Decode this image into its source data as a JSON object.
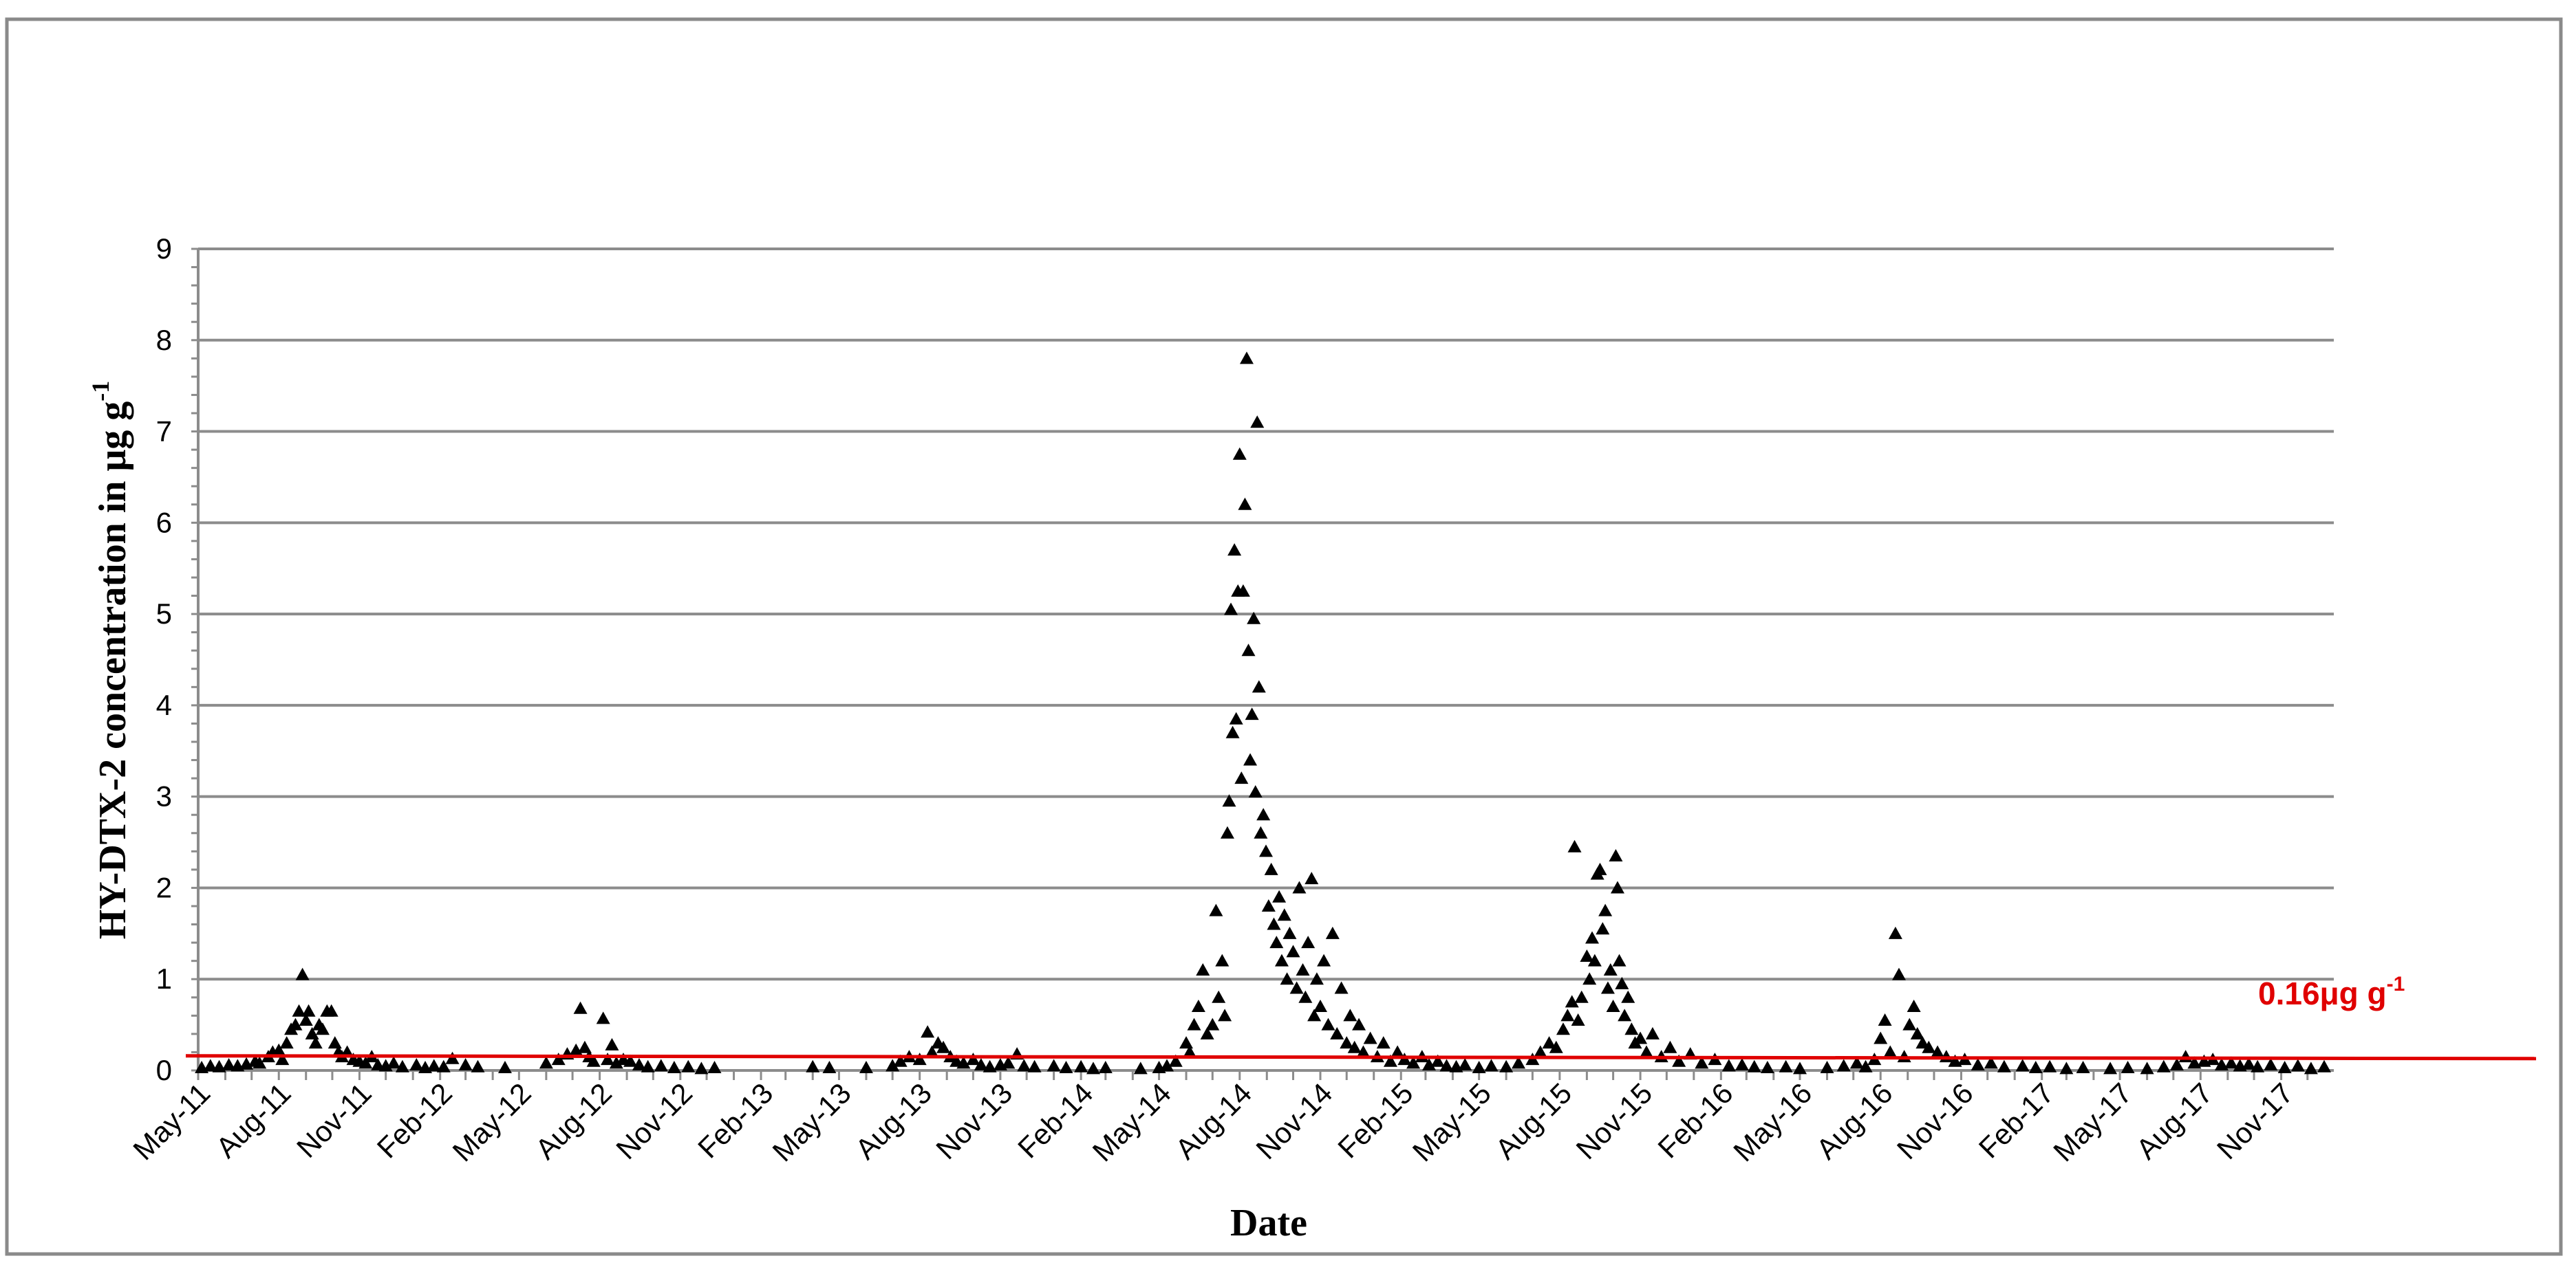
{
  "chart_data": {
    "type": "scatter",
    "title": "",
    "xlabel": "Date",
    "ylabel": "HY-DTX-2 concentration in μg g",
    "ylabel_superscript": "-1",
    "ylim": [
      0,
      9
    ],
    "yticks": [
      "0",
      "1",
      "2",
      "3",
      "4",
      "5",
      "6",
      "7",
      "8",
      "9"
    ],
    "xlim": [
      "2011-05-01",
      "2017-12-31"
    ],
    "xticks": [
      "May-11",
      "Aug-11",
      "Nov-11",
      "Feb-12",
      "May-12",
      "Aug-12",
      "Nov-12",
      "Feb-13",
      "May-13",
      "Aug-13",
      "Nov-13",
      "Feb-14",
      "May-14",
      "Aug-14",
      "Nov-14",
      "Feb-15",
      "May-15",
      "Aug-15",
      "Nov-15",
      "Feb-16",
      "May-16",
      "Aug-16",
      "Nov-16",
      "Feb-17",
      "May-17",
      "Aug-17",
      "Nov-17"
    ],
    "grid": "horizontal",
    "marker": "triangle",
    "marker_color": "#000000",
    "threshold": {
      "value": 0.16,
      "label": "0.16μg g",
      "label_superscript": "-1",
      "color": "#e00000"
    },
    "points": [
      [
        "2011-05-05",
        0.03
      ],
      [
        "2011-05-15",
        0.05
      ],
      [
        "2011-05-25",
        0.04
      ],
      [
        "2011-06-05",
        0.06
      ],
      [
        "2011-06-15",
        0.05
      ],
      [
        "2011-06-25",
        0.07
      ],
      [
        "2011-07-05",
        0.1
      ],
      [
        "2011-07-10",
        0.08
      ],
      [
        "2011-07-20",
        0.15
      ],
      [
        "2011-07-25",
        0.2
      ],
      [
        "2011-08-01",
        0.22
      ],
      [
        "2011-08-05",
        0.12
      ],
      [
        "2011-08-10",
        0.3
      ],
      [
        "2011-08-15",
        0.45
      ],
      [
        "2011-08-20",
        0.5
      ],
      [
        "2011-08-24",
        0.65
      ],
      [
        "2011-08-28",
        1.05
      ],
      [
        "2011-09-01",
        0.55
      ],
      [
        "2011-09-04",
        0.65
      ],
      [
        "2011-09-08",
        0.4
      ],
      [
        "2011-09-12",
        0.3
      ],
      [
        "2011-09-16",
        0.5
      ],
      [
        "2011-09-20",
        0.45
      ],
      [
        "2011-09-25",
        0.65
      ],
      [
        "2011-09-30",
        0.65
      ],
      [
        "2011-10-04",
        0.3
      ],
      [
        "2011-10-08",
        0.2
      ],
      [
        "2011-10-12",
        0.15
      ],
      [
        "2011-10-18",
        0.2
      ],
      [
        "2011-10-25",
        0.12
      ],
      [
        "2011-11-01",
        0.1
      ],
      [
        "2011-11-08",
        0.08
      ],
      [
        "2011-11-15",
        0.15
      ],
      [
        "2011-11-22",
        0.06
      ],
      [
        "2011-12-01",
        0.05
      ],
      [
        "2011-12-10",
        0.08
      ],
      [
        "2011-12-20",
        0.04
      ],
      [
        "2012-01-05",
        0.06
      ],
      [
        "2012-01-15",
        0.03
      ],
      [
        "2012-01-25",
        0.05
      ],
      [
        "2012-02-05",
        0.04
      ],
      [
        "2012-02-15",
        0.13
      ],
      [
        "2012-03-01",
        0.06
      ],
      [
        "2012-03-15",
        0.04
      ],
      [
        "2012-04-15",
        0.03
      ],
      [
        "2012-06-01",
        0.08
      ],
      [
        "2012-06-15",
        0.12
      ],
      [
        "2012-06-25",
        0.18
      ],
      [
        "2012-07-05",
        0.22
      ],
      [
        "2012-07-10",
        0.68
      ],
      [
        "2012-07-15",
        0.25
      ],
      [
        "2012-07-20",
        0.15
      ],
      [
        "2012-07-25",
        0.1
      ],
      [
        "2012-08-05",
        0.57
      ],
      [
        "2012-08-10",
        0.12
      ],
      [
        "2012-08-15",
        0.28
      ],
      [
        "2012-08-20",
        0.08
      ],
      [
        "2012-08-28",
        0.12
      ],
      [
        "2012-09-05",
        0.1
      ],
      [
        "2012-09-15",
        0.06
      ],
      [
        "2012-09-25",
        0.04
      ],
      [
        "2012-10-10",
        0.05
      ],
      [
        "2012-10-25",
        0.03
      ],
      [
        "2012-11-10",
        0.04
      ],
      [
        "2012-11-25",
        0.02
      ],
      [
        "2012-12-10",
        0.03
      ],
      [
        "2013-04-01",
        0.04
      ],
      [
        "2013-04-20",
        0.03
      ],
      [
        "2013-06-01",
        0.03
      ],
      [
        "2013-07-01",
        0.05
      ],
      [
        "2013-07-10",
        0.1
      ],
      [
        "2013-07-20",
        0.15
      ],
      [
        "2013-08-01",
        0.12
      ],
      [
        "2013-08-10",
        0.42
      ],
      [
        "2013-08-15",
        0.2
      ],
      [
        "2013-08-22",
        0.3
      ],
      [
        "2013-08-28",
        0.25
      ],
      [
        "2013-09-05",
        0.15
      ],
      [
        "2013-09-12",
        0.1
      ],
      [
        "2013-09-20",
        0.08
      ],
      [
        "2013-10-01",
        0.12
      ],
      [
        "2013-10-10",
        0.06
      ],
      [
        "2013-10-20",
        0.04
      ],
      [
        "2013-11-01",
        0.06
      ],
      [
        "2013-11-10",
        0.08
      ],
      [
        "2013-11-20",
        0.18
      ],
      [
        "2013-11-28",
        0.05
      ],
      [
        "2013-12-10",
        0.04
      ],
      [
        "2014-01-01",
        0.05
      ],
      [
        "2014-01-15",
        0.03
      ],
      [
        "2014-02-01",
        0.04
      ],
      [
        "2014-02-15",
        0.02
      ],
      [
        "2014-03-01",
        0.03
      ],
      [
        "2014-04-10",
        0.02
      ],
      [
        "2014-05-01",
        0.03
      ],
      [
        "2014-05-10",
        0.05
      ],
      [
        "2014-05-20",
        0.1
      ],
      [
        "2014-06-01",
        0.3
      ],
      [
        "2014-06-05",
        0.2
      ],
      [
        "2014-06-10",
        0.5
      ],
      [
        "2014-06-15",
        0.7
      ],
      [
        "2014-06-20",
        1.1
      ],
      [
        "2014-06-25",
        0.4
      ],
      [
        "2014-07-01",
        0.5
      ],
      [
        "2014-07-05",
        1.75
      ],
      [
        "2014-07-08",
        0.8
      ],
      [
        "2014-07-12",
        1.2
      ],
      [
        "2014-07-15",
        0.6
      ],
      [
        "2014-07-18",
        2.6
      ],
      [
        "2014-07-20",
        2.95
      ],
      [
        "2014-07-22",
        5.05
      ],
      [
        "2014-07-24",
        3.7
      ],
      [
        "2014-07-26",
        5.7
      ],
      [
        "2014-07-28",
        3.85
      ],
      [
        "2014-07-30",
        5.25
      ],
      [
        "2014-08-01",
        6.75
      ],
      [
        "2014-08-03",
        3.2
      ],
      [
        "2014-08-05",
        5.25
      ],
      [
        "2014-08-07",
        6.2
      ],
      [
        "2014-08-09",
        7.8
      ],
      [
        "2014-08-11",
        4.6
      ],
      [
        "2014-08-13",
        3.4
      ],
      [
        "2014-08-15",
        3.9
      ],
      [
        "2014-08-17",
        4.95
      ],
      [
        "2014-08-19",
        3.05
      ],
      [
        "2014-08-21",
        7.1
      ],
      [
        "2014-08-23",
        4.2
      ],
      [
        "2014-08-25",
        2.6
      ],
      [
        "2014-08-28",
        2.8
      ],
      [
        "2014-08-31",
        2.4
      ],
      [
        "2014-09-03",
        1.8
      ],
      [
        "2014-09-06",
        2.2
      ],
      [
        "2014-09-09",
        1.6
      ],
      [
        "2014-09-12",
        1.4
      ],
      [
        "2014-09-15",
        1.9
      ],
      [
        "2014-09-18",
        1.2
      ],
      [
        "2014-09-21",
        1.7
      ],
      [
        "2014-09-24",
        1.0
      ],
      [
        "2014-09-27",
        1.5
      ],
      [
        "2014-10-01",
        1.3
      ],
      [
        "2014-10-05",
        0.9
      ],
      [
        "2014-10-08",
        2.0
      ],
      [
        "2014-10-12",
        1.1
      ],
      [
        "2014-10-15",
        0.8
      ],
      [
        "2014-10-18",
        1.4
      ],
      [
        "2014-10-22",
        2.1
      ],
      [
        "2014-10-25",
        0.6
      ],
      [
        "2014-10-28",
        1.0
      ],
      [
        "2014-11-01",
        0.7
      ],
      [
        "2014-11-05",
        1.2
      ],
      [
        "2014-11-10",
        0.5
      ],
      [
        "2014-11-15",
        1.5
      ],
      [
        "2014-11-20",
        0.4
      ],
      [
        "2014-11-25",
        0.9
      ],
      [
        "2014-12-01",
        0.3
      ],
      [
        "2014-12-05",
        0.6
      ],
      [
        "2014-12-10",
        0.25
      ],
      [
        "2014-12-15",
        0.5
      ],
      [
        "2014-12-20",
        0.2
      ],
      [
        "2014-12-28",
        0.35
      ],
      [
        "2015-01-05",
        0.15
      ],
      [
        "2015-01-12",
        0.3
      ],
      [
        "2015-01-20",
        0.1
      ],
      [
        "2015-01-28",
        0.2
      ],
      [
        "2015-02-05",
        0.12
      ],
      [
        "2015-02-15",
        0.08
      ],
      [
        "2015-02-25",
        0.15
      ],
      [
        "2015-03-05",
        0.06
      ],
      [
        "2015-03-15",
        0.1
      ],
      [
        "2015-03-25",
        0.05
      ],
      [
        "2015-04-05",
        0.04
      ],
      [
        "2015-04-15",
        0.06
      ],
      [
        "2015-05-01",
        0.03
      ],
      [
        "2015-05-15",
        0.05
      ],
      [
        "2015-06-01",
        0.04
      ],
      [
        "2015-06-15",
        0.08
      ],
      [
        "2015-07-01",
        0.12
      ],
      [
        "2015-07-10",
        0.2
      ],
      [
        "2015-07-20",
        0.3
      ],
      [
        "2015-07-28",
        0.25
      ],
      [
        "2015-08-05",
        0.45
      ],
      [
        "2015-08-10",
        0.6
      ],
      [
        "2015-08-15",
        0.75
      ],
      [
        "2015-08-18",
        2.45
      ],
      [
        "2015-08-22",
        0.55
      ],
      [
        "2015-08-26",
        0.8
      ],
      [
        "2015-09-01",
        1.25
      ],
      [
        "2015-09-04",
        1.0
      ],
      [
        "2015-09-07",
        1.45
      ],
      [
        "2015-09-10",
        1.2
      ],
      [
        "2015-09-13",
        2.15
      ],
      [
        "2015-09-16",
        2.2
      ],
      [
        "2015-09-19",
        1.55
      ],
      [
        "2015-09-22",
        1.75
      ],
      [
        "2015-09-25",
        0.9
      ],
      [
        "2015-09-28",
        1.1
      ],
      [
        "2015-10-01",
        0.7
      ],
      [
        "2015-10-04",
        2.35
      ],
      [
        "2015-10-06",
        2.0
      ],
      [
        "2015-10-08",
        1.2
      ],
      [
        "2015-10-11",
        0.95
      ],
      [
        "2015-10-14",
        0.6
      ],
      [
        "2015-10-18",
        0.8
      ],
      [
        "2015-10-22",
        0.45
      ],
      [
        "2015-10-26",
        0.3
      ],
      [
        "2015-11-01",
        0.35
      ],
      [
        "2015-11-08",
        0.2
      ],
      [
        "2015-11-15",
        0.4
      ],
      [
        "2015-11-25",
        0.15
      ],
      [
        "2015-12-05",
        0.25
      ],
      [
        "2015-12-15",
        0.1
      ],
      [
        "2015-12-28",
        0.18
      ],
      [
        "2016-01-10",
        0.08
      ],
      [
        "2016-01-25",
        0.12
      ],
      [
        "2016-02-10",
        0.05
      ],
      [
        "2016-02-25",
        0.06
      ],
      [
        "2016-03-10",
        0.04
      ],
      [
        "2016-03-25",
        0.03
      ],
      [
        "2016-04-15",
        0.04
      ],
      [
        "2016-05-01",
        0.02
      ],
      [
        "2016-06-01",
        0.03
      ],
      [
        "2016-06-20",
        0.05
      ],
      [
        "2016-07-05",
        0.08
      ],
      [
        "2016-07-15",
        0.04
      ],
      [
        "2016-07-25",
        0.12
      ],
      [
        "2016-08-01",
        0.35
      ],
      [
        "2016-08-06",
        0.55
      ],
      [
        "2016-08-12",
        0.2
      ],
      [
        "2016-08-18",
        1.5
      ],
      [
        "2016-08-22",
        1.05
      ],
      [
        "2016-08-28",
        0.15
      ],
      [
        "2016-09-03",
        0.5
      ],
      [
        "2016-09-08",
        0.7
      ],
      [
        "2016-09-12",
        0.4
      ],
      [
        "2016-09-18",
        0.3
      ],
      [
        "2016-09-25",
        0.25
      ],
      [
        "2016-10-05",
        0.2
      ],
      [
        "2016-10-15",
        0.15
      ],
      [
        "2016-10-25",
        0.1
      ],
      [
        "2016-11-05",
        0.12
      ],
      [
        "2016-11-20",
        0.06
      ],
      [
        "2016-12-05",
        0.08
      ],
      [
        "2016-12-20",
        0.04
      ],
      [
        "2017-01-10",
        0.05
      ],
      [
        "2017-01-25",
        0.03
      ],
      [
        "2017-02-10",
        0.04
      ],
      [
        "2017-03-01",
        0.02
      ],
      [
        "2017-03-20",
        0.03
      ],
      [
        "2017-04-20",
        0.02
      ],
      [
        "2017-05-10",
        0.03
      ],
      [
        "2017-06-01",
        0.02
      ],
      [
        "2017-06-20",
        0.04
      ],
      [
        "2017-07-05",
        0.06
      ],
      [
        "2017-07-15",
        0.15
      ],
      [
        "2017-07-25",
        0.08
      ],
      [
        "2017-08-05",
        0.1
      ],
      [
        "2017-08-15",
        0.12
      ],
      [
        "2017-08-25",
        0.06
      ],
      [
        "2017-09-05",
        0.08
      ],
      [
        "2017-09-15",
        0.05
      ],
      [
        "2017-09-25",
        0.07
      ],
      [
        "2017-10-05",
        0.04
      ],
      [
        "2017-10-20",
        0.06
      ],
      [
        "2017-11-05",
        0.03
      ],
      [
        "2017-11-20",
        0.05
      ],
      [
        "2017-12-05",
        0.02
      ],
      [
        "2017-12-20",
        0.04
      ]
    ]
  }
}
